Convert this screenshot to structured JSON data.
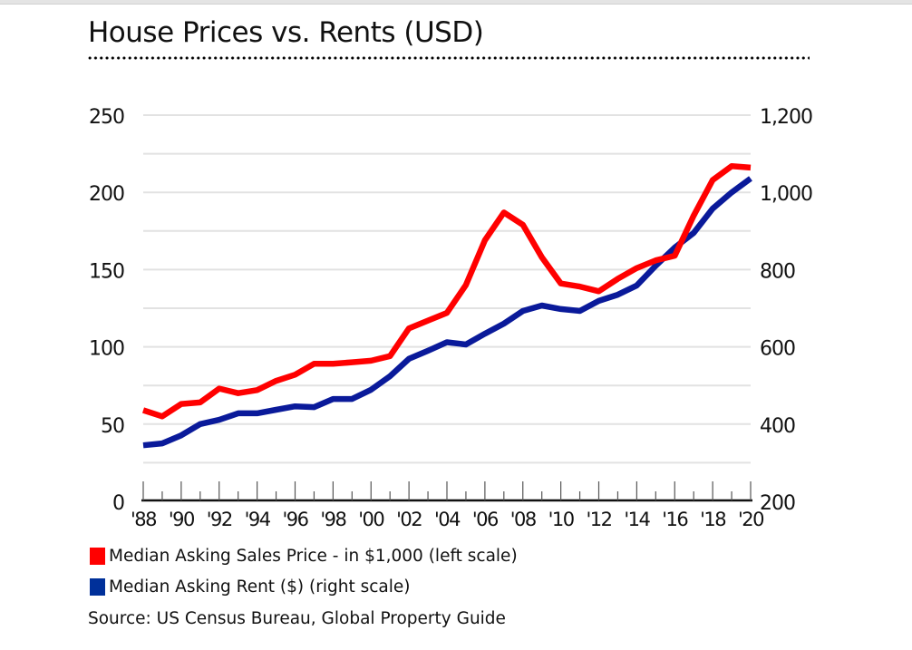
{
  "chart_data": {
    "type": "line",
    "title": "House Prices vs. Rents (USD)",
    "x": [
      "'88",
      "'89",
      "'90",
      "'91",
      "'92",
      "'93",
      "'94",
      "'95",
      "'96",
      "'97",
      "'98",
      "'99",
      "'00",
      "'01",
      "'02",
      "'03",
      "'04",
      "'05",
      "'06",
      "'07",
      "'08",
      "'09",
      "'10",
      "'11",
      "'12",
      "'13",
      "'14",
      "'15",
      "'16",
      "'17",
      "'18",
      "'19",
      "'20"
    ],
    "x_tick_labels": [
      "'88",
      "'90",
      "'92",
      "'94",
      "'96",
      "'98",
      "'00",
      "'02",
      "'04",
      "'06",
      "'08",
      "'10",
      "'12",
      "'14",
      "'16",
      "'18",
      "'20"
    ],
    "y_left": {
      "range": [
        0,
        250
      ],
      "ticks": [
        0,
        50,
        100,
        150,
        200,
        250
      ],
      "tick_labels": [
        "0",
        "50",
        "100",
        "150",
        "200",
        "250"
      ]
    },
    "y_right": {
      "range": [
        200,
        1200
      ],
      "ticks": [
        200,
        400,
        600,
        800,
        1000,
        1200
      ],
      "tick_labels": [
        "200",
        "400",
        "600",
        "800",
        "1,000",
        "1,200"
      ]
    },
    "grid": true,
    "series": [
      {
        "name": "Median Asking Sales Price - in $1,000 (left scale)",
        "axis": "left",
        "color": "#ff0000",
        "values": [
          59,
          55,
          63,
          64,
          73,
          70,
          72,
          78,
          82,
          89,
          89,
          90,
          91,
          94,
          112,
          117,
          122,
          140,
          169,
          187,
          179,
          158,
          141,
          139,
          136,
          144,
          151,
          156,
          159,
          185,
          208,
          217,
          216
        ]
      },
      {
        "name": "Median Asking Rent ($) (right scale)",
        "axis": "right",
        "color": "#0a1a9a",
        "values": [
          345,
          350,
          371,
          400,
          411,
          428,
          428,
          437,
          446,
          444,
          465,
          465,
          489,
          524,
          569,
          590,
          612,
          606,
          634,
          660,
          693,
          707,
          698,
          693,
          719,
          735,
          759,
          810,
          857,
          895,
          958,
          1000,
          1036
        ]
      }
    ],
    "legend_position": "bottom-left",
    "source": "Source: US Census Bureau, Global Property Guide"
  },
  "legend": {
    "items": [
      {
        "label": "Median Asking Sales Price - in $1,000 (left scale)",
        "color": "#ff0000"
      },
      {
        "label": "Median Asking Rent ($) (right scale)",
        "color": "#00309a"
      }
    ]
  }
}
